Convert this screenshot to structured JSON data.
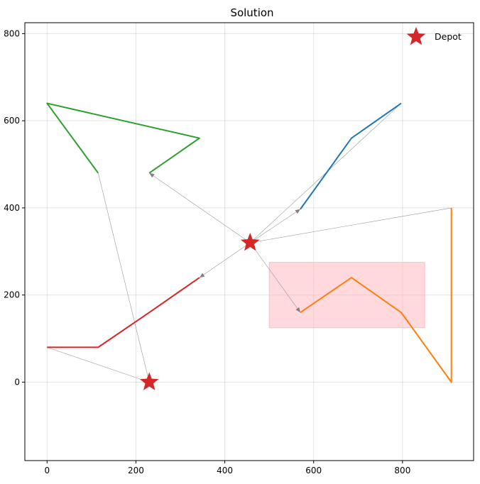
{
  "chart_data": {
    "type": "line",
    "title": "Solution",
    "xlabel": "",
    "ylabel": "",
    "xlim": [
      -50,
      960
    ],
    "ylim": [
      -180,
      825
    ],
    "xticks": [
      0,
      200,
      400,
      600,
      800
    ],
    "yticks": [
      0,
      200,
      400,
      600,
      800
    ],
    "grid": true,
    "legend": {
      "placement": "top-right",
      "entries": [
        {
          "label": "Depot",
          "marker": "star",
          "color": "#d62728"
        }
      ]
    },
    "depots": [
      [
        230,
        0
      ],
      [
        457,
        320
      ]
    ],
    "routes": [
      {
        "color": "#1f77b4",
        "points": [
          [
            570,
            397
          ],
          [
            685,
            560
          ],
          [
            797,
            640
          ]
        ]
      },
      {
        "color": "#ff7f0e",
        "points": [
          [
            570,
            160
          ],
          [
            685,
            240
          ],
          [
            797,
            160
          ],
          [
            910,
            0
          ],
          [
            910,
            400
          ]
        ]
      },
      {
        "color": "#2ca02c",
        "points": [
          [
            230,
            480
          ],
          [
            343,
            560
          ],
          [
            0,
            640
          ],
          [
            115,
            480
          ]
        ]
      },
      {
        "color": "#d62728",
        "points": [
          [
            343,
            240
          ],
          [
            230,
            160
          ],
          [
            115,
            80
          ],
          [
            0,
            80
          ]
        ]
      }
    ],
    "connectors": [
      {
        "from": [
          457,
          320
        ],
        "to": [
          570,
          397
        ],
        "arrow": true
      },
      {
        "from": [
          797,
          640
        ],
        "to": [
          457,
          320
        ],
        "arrow": false
      },
      {
        "from": [
          457,
          320
        ],
        "to": [
          570,
          160
        ],
        "arrow": true
      },
      {
        "from": [
          910,
          400
        ],
        "to": [
          457,
          320
        ],
        "arrow": false
      },
      {
        "from": [
          457,
          320
        ],
        "to": [
          230,
          480
        ],
        "arrow": true
      },
      {
        "from": [
          115,
          480
        ],
        "to": [
          230,
          0
        ],
        "arrow": false
      },
      {
        "from": [
          457,
          320
        ],
        "to": [
          343,
          240
        ],
        "arrow": true
      },
      {
        "from": [
          0,
          80
        ],
        "to": [
          230,
          0
        ],
        "arrow": false
      }
    ],
    "highlight_region": {
      "x": [
        500,
        850
      ],
      "y": [
        125,
        275
      ],
      "color": "#ffb3b8"
    }
  }
}
